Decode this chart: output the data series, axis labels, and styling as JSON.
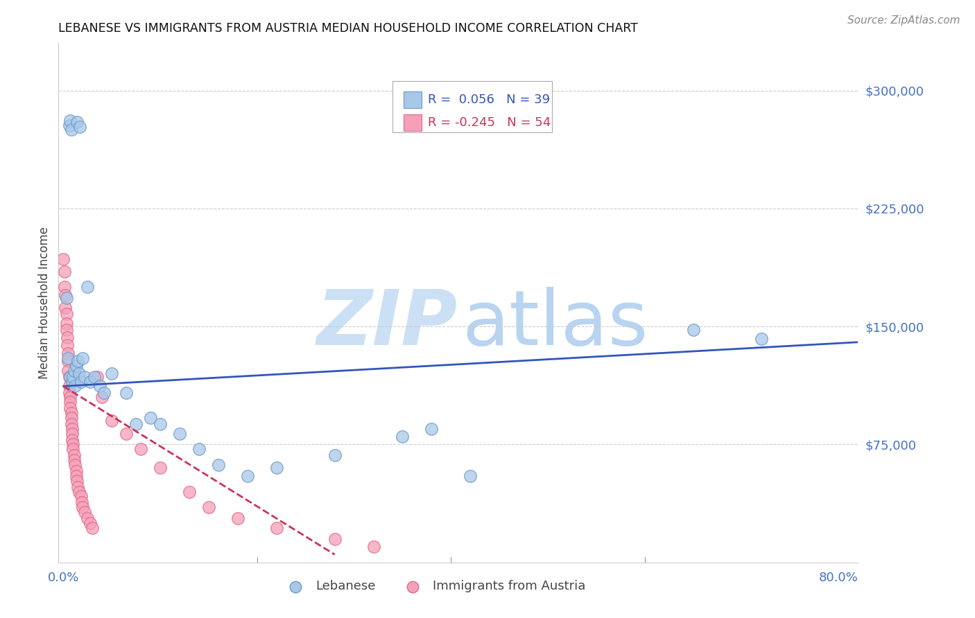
{
  "title": "LEBANESE VS IMMIGRANTS FROM AUSTRIA MEDIAN HOUSEHOLD INCOME CORRELATION CHART",
  "source": "Source: ZipAtlas.com",
  "ylabel": "Median Household Income",
  "xlim": [
    -0.005,
    0.82
  ],
  "ylim": [
    0,
    330000
  ],
  "yticks": [
    75000,
    150000,
    225000,
    300000
  ],
  "ytick_labels": [
    "$75,000",
    "$150,000",
    "$225,000",
    "$300,000"
  ],
  "xtick_show": [
    "0.0%",
    "80.0%"
  ],
  "xtick_pos_show": [
    0.0,
    0.8
  ],
  "lebanese_color": "#a8c8e8",
  "austria_color": "#f4a0b8",
  "lebanese_edge": "#6699cc",
  "austria_edge": "#e06888",
  "trendline_lebanese_color": "#3355bb",
  "trendline_austria_color": "#cc3355",
  "watermark_zip_color": "#cce0f5",
  "watermark_atlas_color": "#b8d4f0",
  "legend_r_lebanese": "0.056",
  "legend_n_lebanese": "39",
  "legend_r_austria": "-0.245",
  "legend_n_austria": "54",
  "lebanese_x": [
    0.006,
    0.007,
    0.008,
    0.014,
    0.017,
    0.003,
    0.005,
    0.007,
    0.009,
    0.01,
    0.011,
    0.012,
    0.013,
    0.015,
    0.016,
    0.018,
    0.02,
    0.022,
    0.025,
    0.028,
    0.032,
    0.038,
    0.042,
    0.05,
    0.065,
    0.075,
    0.09,
    0.1,
    0.12,
    0.14,
    0.16,
    0.19,
    0.22,
    0.28,
    0.35,
    0.38,
    0.42,
    0.65,
    0.72
  ],
  "lebanese_y": [
    278000,
    281000,
    275000,
    280000,
    277000,
    168000,
    130000,
    118000,
    115000,
    118000,
    122000,
    112000,
    125000,
    128000,
    120000,
    115000,
    130000,
    118000,
    175000,
    115000,
    118000,
    112000,
    108000,
    120000,
    108000,
    88000,
    92000,
    88000,
    82000,
    72000,
    62000,
    55000,
    60000,
    68000,
    80000,
    85000,
    55000,
    148000,
    142000
  ],
  "austria_x": [
    0.0,
    0.001,
    0.001,
    0.002,
    0.002,
    0.003,
    0.003,
    0.003,
    0.004,
    0.004,
    0.005,
    0.005,
    0.005,
    0.006,
    0.006,
    0.006,
    0.007,
    0.007,
    0.007,
    0.008,
    0.008,
    0.008,
    0.009,
    0.009,
    0.009,
    0.01,
    0.01,
    0.011,
    0.011,
    0.012,
    0.013,
    0.013,
    0.014,
    0.015,
    0.016,
    0.018,
    0.019,
    0.02,
    0.022,
    0.025,
    0.028,
    0.03,
    0.035,
    0.04,
    0.05,
    0.065,
    0.08,
    0.1,
    0.13,
    0.15,
    0.18,
    0.22,
    0.28,
    0.32
  ],
  "austria_y": [
    193000,
    185000,
    175000,
    170000,
    162000,
    158000,
    152000,
    148000,
    143000,
    138000,
    133000,
    128000,
    122000,
    118000,
    112000,
    108000,
    105000,
    102000,
    98000,
    95000,
    92000,
    88000,
    85000,
    82000,
    78000,
    75000,
    72000,
    68000,
    65000,
    62000,
    58000,
    55000,
    52000,
    48000,
    45000,
    42000,
    38000,
    35000,
    32000,
    28000,
    25000,
    22000,
    118000,
    105000,
    90000,
    82000,
    72000,
    60000,
    45000,
    35000,
    28000,
    22000,
    15000,
    10000
  ],
  "trendline_leb_x0": 0.0,
  "trendline_leb_x1": 0.82,
  "trendline_leb_y0": 112000,
  "trendline_leb_y1": 140000,
  "trendline_aut_x0": 0.0,
  "trendline_aut_x1": 0.28,
  "trendline_aut_y0": 112000,
  "trendline_aut_y1": 5000
}
